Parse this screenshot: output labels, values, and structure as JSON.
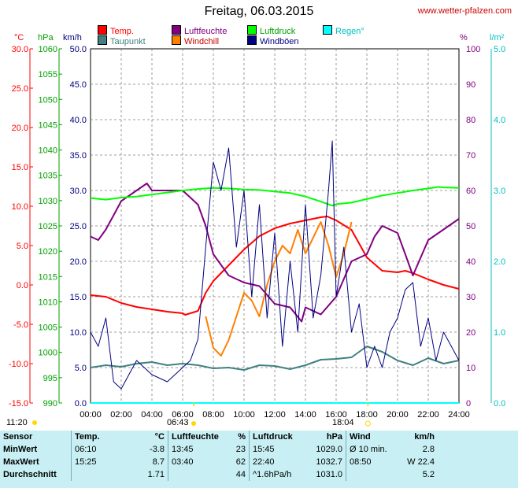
{
  "title": "Freitag, 06.03.2015",
  "site": "www.wetter-pfalzen.com",
  "units": {
    "temp": "°C",
    "press": "hPa",
    "wind": "km/h",
    "hum": "%",
    "rain": "l/m²"
  },
  "legend": [
    {
      "label": "Temp.",
      "color": "#ff0000"
    },
    {
      "label": "Taupunkt",
      "color": "#408080"
    },
    {
      "label": "Luftfeuchte",
      "color": "#800080"
    },
    {
      "label": "Windchill",
      "color": "#ff8000"
    },
    {
      "label": "Luftdruck",
      "color": "#00ff00"
    },
    {
      "label": "Windböen",
      "color": "#000080"
    },
    {
      "label": "Regen°",
      "color": "#00ffff"
    }
  ],
  "sun": {
    "sunrise_label": "06:43",
    "sunset_label": "18:04",
    "moonset_label": "11:20"
  },
  "chart_data": {
    "type": "line",
    "x_unit": "hour",
    "x_ticks": [
      "00:00",
      "02:00",
      "04:00",
      "06:00",
      "08:00",
      "10:00",
      "12:00",
      "14:00",
      "16:00",
      "18:00",
      "20:00",
      "22:00",
      "24:00"
    ],
    "axes": {
      "temp_c": {
        "range": [
          -15,
          30
        ],
        "ticks": [
          "30.0",
          "25.0",
          "20.0",
          "15.0",
          "10.0",
          "5.0",
          "0.0",
          "-5.0",
          "-10.0",
          "-15.0"
        ]
      },
      "pressure_hpa": {
        "range": [
          990,
          1060
        ],
        "ticks": [
          "1060",
          "1055",
          "1050",
          "1045",
          "1040",
          "1035",
          "1030",
          "1025",
          "1020",
          "1015",
          "1010",
          "1005",
          "1000",
          "995",
          "990"
        ]
      },
      "wind_kmh": {
        "range": [
          0,
          50
        ],
        "ticks": [
          "50.0",
          "45.0",
          "40.0",
          "35.0",
          "30.0",
          "25.0",
          "20.0",
          "15.0",
          "10.0",
          "5.0",
          "0.0"
        ]
      },
      "humidity_pct": {
        "range": [
          0,
          100
        ],
        "ticks": [
          "100",
          "90",
          "80",
          "70",
          "60",
          "50",
          "40",
          "30",
          "20",
          "10",
          "0"
        ]
      },
      "rain_lm2": {
        "range": [
          0,
          5
        ],
        "ticks": [
          "5.0",
          "4.0",
          "3.0",
          "2.0",
          "1.0",
          "0.0"
        ]
      }
    },
    "series": [
      {
        "name": "Temp.",
        "axis": "temp_c",
        "color": "#ff0000",
        "x": [
          0,
          1,
          2,
          3,
          4,
          5,
          6,
          6.17,
          7,
          7.5,
          8,
          9,
          10,
          11,
          12,
          13,
          14,
          15,
          15.42,
          16,
          17,
          18,
          19,
          20,
          20.5,
          21,
          22,
          23,
          24
        ],
        "y": [
          -1.3,
          -1.5,
          -2.3,
          -2.8,
          -3.1,
          -3.4,
          -3.6,
          -3.8,
          -3.3,
          -1,
          0.5,
          2.5,
          4.5,
          6.2,
          7.2,
          7.8,
          8.2,
          8.6,
          8.7,
          8.2,
          7,
          3.5,
          1.8,
          1.6,
          1.8,
          1.5,
          0.7,
          0,
          -0.5
        ]
      },
      {
        "name": "Taupunkt",
        "axis": "temp_c",
        "color": "#408080",
        "x": [
          0,
          1,
          2,
          3,
          4,
          5,
          6,
          7,
          8,
          9,
          10,
          11,
          12,
          13,
          14,
          15,
          16,
          17,
          18,
          19,
          20,
          21,
          22,
          23,
          24
        ],
        "y": [
          -10.5,
          -10.2,
          -10.4,
          -10,
          -9.8,
          -10.2,
          -10,
          -10.2,
          -10.6,
          -10.5,
          -10.8,
          -10.2,
          -10.3,
          -10.7,
          -10.2,
          -9.5,
          -9.4,
          -9.2,
          -7.8,
          -8.5,
          -9.6,
          -10.2,
          -9.3,
          -10,
          -9.6
        ]
      },
      {
        "name": "Luftfeuchte",
        "axis": "humidity_pct",
        "color": "#800080",
        "x": [
          0,
          0.5,
          1,
          1.5,
          2,
          3,
          3.67,
          4,
          5,
          6,
          6.5,
          7,
          7.5,
          8,
          9,
          10,
          11,
          12,
          13,
          13.75,
          14,
          15,
          16,
          17,
          18,
          18.5,
          19,
          20,
          20.5,
          21,
          22,
          23,
          24
        ],
        "y": [
          47,
          46,
          49,
          53,
          57,
          60,
          62,
          60,
          60,
          60,
          58,
          56,
          50,
          42,
          36,
          34,
          33,
          28,
          27,
          23,
          27,
          25,
          30,
          40,
          42,
          47,
          50,
          48,
          42,
          36,
          46,
          49,
          52
        ]
      },
      {
        "name": "Windchill",
        "axis": "temp_c",
        "color": "#ff8000",
        "x": [
          7.5,
          8,
          8.5,
          9,
          9.5,
          10,
          10.5,
          11,
          11.5,
          12,
          12.5,
          13,
          13.5,
          14,
          14.5,
          15,
          15.5,
          16,
          16.5,
          17
        ],
        "y": [
          -4,
          -8,
          -9,
          -7,
          -4,
          -1,
          -2,
          -4,
          0,
          3,
          5,
          4,
          7,
          4,
          6,
          8,
          5,
          1,
          4,
          8
        ]
      },
      {
        "name": "Luftdruck",
        "axis": "pressure_hpa",
        "color": "#00ff00",
        "x": [
          0,
          1,
          2,
          3,
          4,
          5,
          6,
          7,
          8,
          9,
          10,
          11,
          12,
          13,
          14,
          15,
          15.75,
          16,
          17,
          18,
          19,
          20,
          21,
          22,
          22.67,
          23,
          24
        ],
        "y": [
          1030.5,
          1030.2,
          1030.6,
          1030.8,
          1031.2,
          1031.6,
          1032,
          1032.3,
          1032.5,
          1032.4,
          1032.2,
          1032.1,
          1031.8,
          1031.5,
          1030.8,
          1029.8,
          1029,
          1029.3,
          1029.6,
          1030.3,
          1031,
          1031.5,
          1032,
          1032.4,
          1032.7,
          1032.6,
          1032.5
        ]
      },
      {
        "name": "Windböen",
        "axis": "wind_kmh",
        "color": "#000080",
        "x": [
          0,
          0.5,
          1,
          1.5,
          2,
          3,
          4,
          5,
          6,
          6.5,
          7,
          7.5,
          8,
          8.5,
          9,
          9.5,
          10,
          10.5,
          11,
          11.5,
          12,
          12.5,
          13,
          13.5,
          14,
          14.5,
          15,
          15.5,
          15.75,
          16,
          16.5,
          17,
          17.5,
          18,
          18.5,
          19,
          19.5,
          20,
          20.5,
          21,
          21.5,
          22,
          22.5,
          23,
          23.5,
          24
        ],
        "y": [
          10,
          8,
          12,
          3,
          2,
          6,
          4,
          3,
          5,
          6,
          9,
          22,
          34,
          30,
          36,
          22,
          30,
          15,
          28,
          12,
          24,
          8,
          20,
          10,
          28,
          12,
          18,
          30,
          37,
          15,
          22,
          10,
          14,
          5,
          8,
          5,
          10,
          12,
          16,
          17,
          8,
          12,
          6,
          10,
          8,
          6
        ]
      }
    ],
    "rain_total": [
      0,
      0
    ]
  },
  "stats": {
    "headers": [
      "Sensor",
      "Temp.",
      "°C",
      "Luftfeuchte",
      "%",
      "Luftdruck",
      "hPa",
      "Wind",
      "km/h"
    ],
    "rows": [
      {
        "label": "MinWert",
        "t_time": "06:10",
        "t_val": "-3.8",
        "h_time": "13:45",
        "h_val": "23",
        "p_time": "15:45",
        "p_val": "1029.0",
        "w_label": "Ø 10 min.",
        "w_val": "2.8"
      },
      {
        "label": "MaxWert",
        "t_time": "15:25",
        "t_val": "8.7",
        "h_time": "03:40",
        "h_val": "62",
        "p_time": "22:40",
        "p_val": "1032.7",
        "w_label": "08:50",
        "w_val": "W 22.4"
      },
      {
        "label": "Durchschnitt",
        "t_time": "",
        "t_val": "1.71",
        "h_time": "",
        "h_val": "44",
        "p_time": "^1.6hPa/h",
        "p_val": "1031.0",
        "w_label": "",
        "w_val": "5.2"
      }
    ]
  }
}
